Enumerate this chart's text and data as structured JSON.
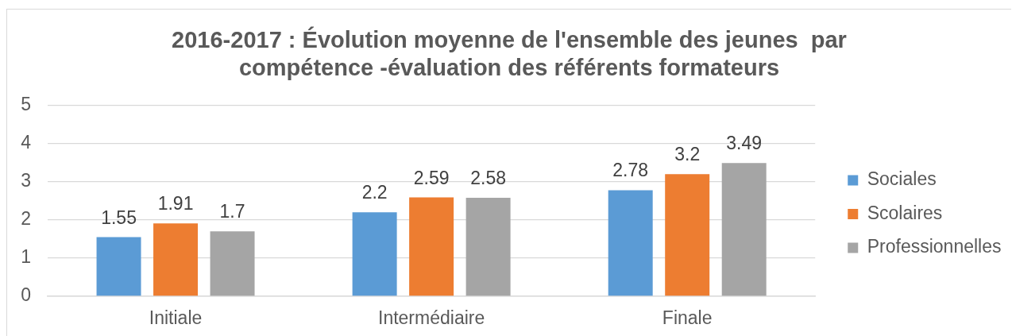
{
  "chart_data": {
    "type": "bar",
    "title": "2016-2017 : Évolution moyenne de l'ensemble des jeunes  par compétence -évaluation des référents formateurs",
    "categories": [
      "Initiale",
      "Intermédiaire",
      "Finale"
    ],
    "series": [
      {
        "name": "Sociales",
        "color": "#5b9bd5",
        "values": [
          1.55,
          2.2,
          2.78
        ]
      },
      {
        "name": "Scolaires",
        "color": "#ed7d31",
        "values": [
          1.91,
          2.59,
          3.2
        ]
      },
      {
        "name": "Professionnelles",
        "color": "#a5a5a5",
        "values": [
          1.7,
          2.58,
          3.49
        ]
      }
    ],
    "ylim": [
      0,
      5
    ],
    "yticks": [
      0,
      1,
      2,
      3,
      4,
      5
    ],
    "grid": "y",
    "legend": "right",
    "data_labels": true
  }
}
